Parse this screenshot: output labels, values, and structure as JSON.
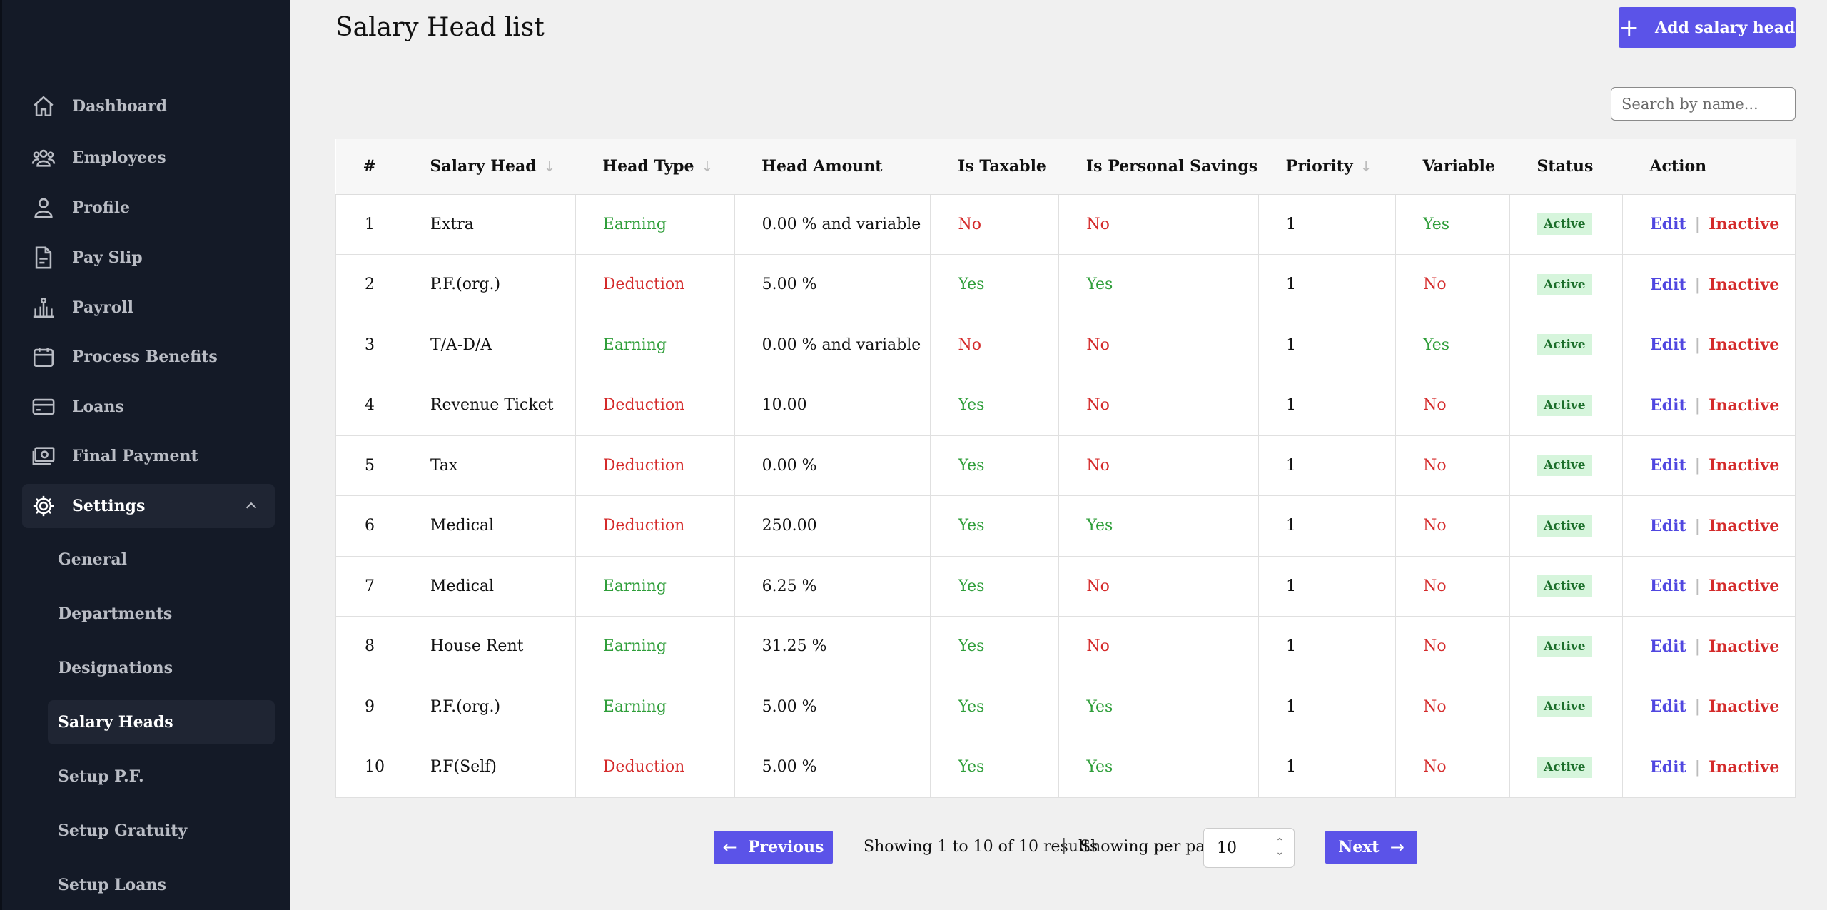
{
  "sidebar": {
    "items": [
      {
        "label": "Dashboard",
        "icon": "home-icon"
      },
      {
        "label": "Employees",
        "icon": "users-icon"
      },
      {
        "label": "Profile",
        "icon": "user-icon"
      },
      {
        "label": "Pay Slip",
        "icon": "document-icon"
      },
      {
        "label": "Payroll",
        "icon": "payroll-icon"
      },
      {
        "label": "Process Benefits",
        "icon": "calendar-icon"
      },
      {
        "label": "Loans",
        "icon": "credit-card-icon"
      },
      {
        "label": "Final Payment",
        "icon": "cash-icon"
      },
      {
        "label": "Settings",
        "icon": "gear-icon"
      }
    ],
    "settings_sub": [
      "General",
      "Departments",
      "Designations",
      "Salary Heads",
      "Setup P.F.",
      "Setup Gratuity",
      "Setup Loans"
    ]
  },
  "header": {
    "title": "Salary Head list",
    "add_button": "Add salary head"
  },
  "search": {
    "placeholder": "Search by name..."
  },
  "table": {
    "columns": [
      "#",
      "Salary Head",
      "Head Type",
      "Head Amount",
      "Is Taxable",
      "Is Personal Savings",
      "Priority",
      "Variable",
      "Status",
      "Action"
    ],
    "rows": [
      {
        "num": "1",
        "name": "Extra",
        "type": "Earning",
        "amount": "0.00 % and variable",
        "taxable": "No",
        "savings": "No",
        "priority": "1",
        "variable": "Yes",
        "status": "Active"
      },
      {
        "num": "2",
        "name": "P.F.(org.)",
        "type": "Deduction",
        "amount": "5.00 %",
        "taxable": "Yes",
        "savings": "Yes",
        "priority": "1",
        "variable": "No",
        "status": "Active"
      },
      {
        "num": "3",
        "name": "T/A-D/A",
        "type": "Earning",
        "amount": "0.00 % and variable",
        "taxable": "No",
        "savings": "No",
        "priority": "1",
        "variable": "Yes",
        "status": "Active"
      },
      {
        "num": "4",
        "name": "Revenue Ticket",
        "type": "Deduction",
        "amount": "10.00",
        "taxable": "Yes",
        "savings": "No",
        "priority": "1",
        "variable": "No",
        "status": "Active"
      },
      {
        "num": "5",
        "name": "Tax",
        "type": "Deduction",
        "amount": "0.00 %",
        "taxable": "Yes",
        "savings": "No",
        "priority": "1",
        "variable": "No",
        "status": "Active"
      },
      {
        "num": "6",
        "name": "Medical",
        "type": "Deduction",
        "amount": "250.00",
        "taxable": "Yes",
        "savings": "Yes",
        "priority": "1",
        "variable": "No",
        "status": "Active"
      },
      {
        "num": "7",
        "name": "Medical",
        "type": "Earning",
        "amount": "6.25 %",
        "taxable": "Yes",
        "savings": "No",
        "priority": "1",
        "variable": "No",
        "status": "Active"
      },
      {
        "num": "8",
        "name": "House Rent",
        "type": "Earning",
        "amount": "31.25 %",
        "taxable": "Yes",
        "savings": "No",
        "priority": "1",
        "variable": "No",
        "status": "Active"
      },
      {
        "num": "9",
        "name": "P.F.(org.)",
        "type": "Earning",
        "amount": "5.00 %",
        "taxable": "Yes",
        "savings": "Yes",
        "priority": "1",
        "variable": "No",
        "status": "Active"
      },
      {
        "num": "10",
        "name": "P.F(Self)",
        "type": "Deduction",
        "amount": "5.00 %",
        "taxable": "Yes",
        "savings": "Yes",
        "priority": "1",
        "variable": "No",
        "status": "Active"
      }
    ],
    "action_edit": "Edit",
    "action_separator": "|",
    "action_inactive": "Inactive"
  },
  "pagination": {
    "previous": "Previous",
    "next": "Next",
    "info": "Showing 1 to 10 of 10 results",
    "divider": "|",
    "per_page_label": "Showing per page",
    "per_page_value": "10"
  },
  "colors": {
    "sidebar_bg": "#141a27",
    "accent": "#5b53e8",
    "earning": "#2f9e3a",
    "deduction": "#d42a2a"
  }
}
